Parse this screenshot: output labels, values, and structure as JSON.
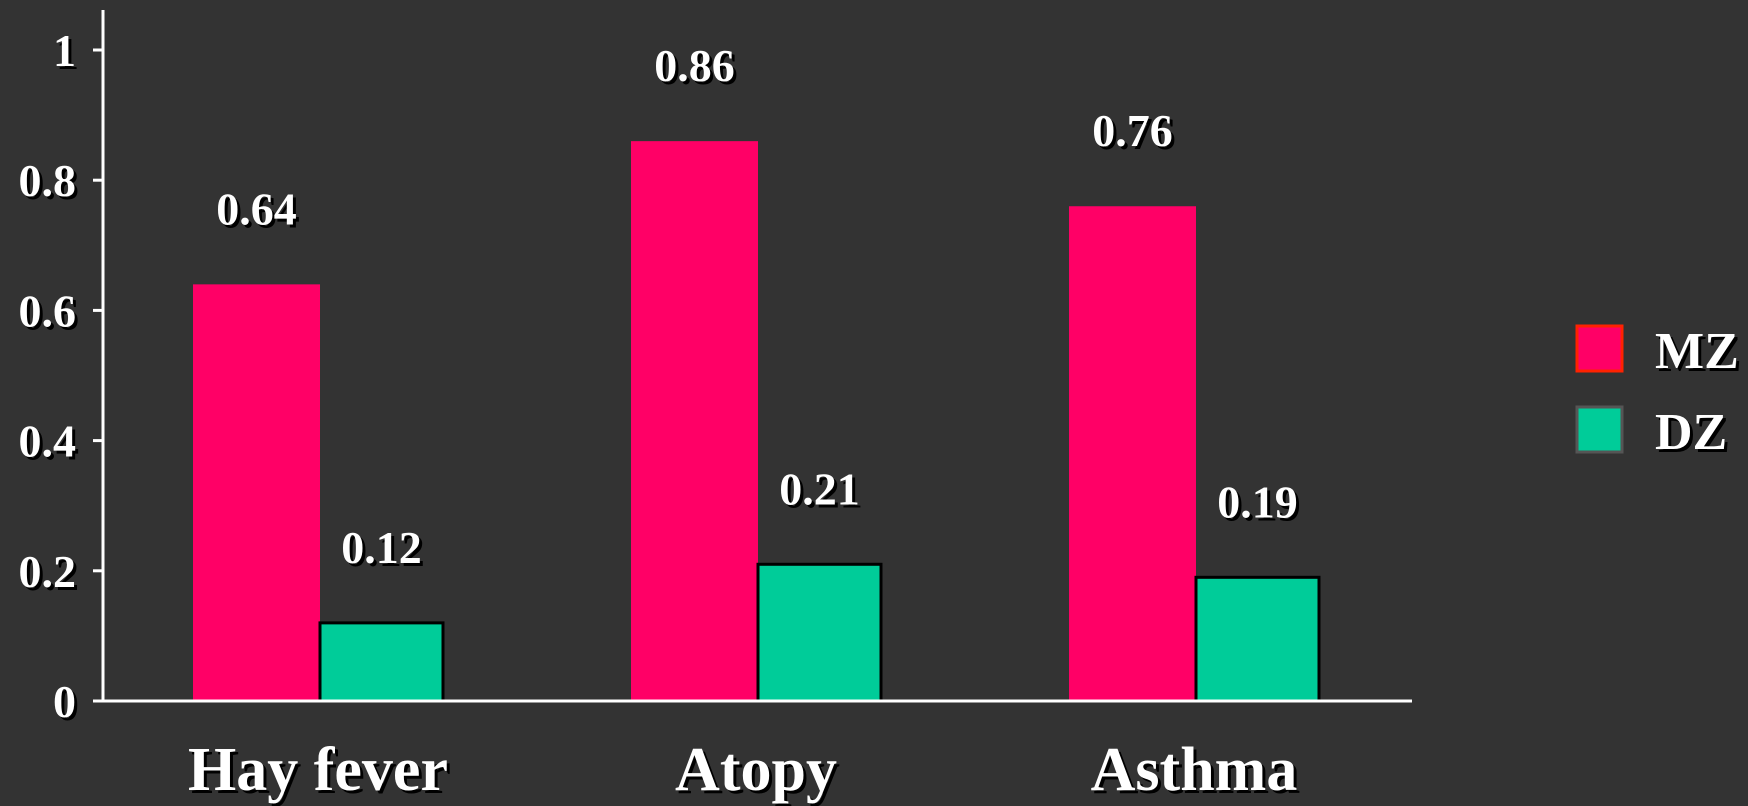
{
  "chart_data": {
    "type": "bar",
    "categories": [
      "Hay fever",
      "Atopy",
      "Asthma"
    ],
    "series": [
      {
        "name": "MZ",
        "values": [
          0.64,
          0.86,
          0.76
        ]
      },
      {
        "name": "DZ",
        "values": [
          0.12,
          0.21,
          0.19
        ]
      }
    ],
    "data_labels": [
      [
        "0.64",
        "0.86",
        "0.76"
      ],
      [
        "0.12",
        "0.21",
        "0.19"
      ]
    ],
    "yticks": [
      "0",
      "0.2",
      "0.4",
      "0.6",
      "0.8",
      "1"
    ],
    "ylim": [
      0,
      1
    ],
    "grid": false,
    "legend": "right",
    "colors": {
      "background": "#333333",
      "MZ": "#FF0066",
      "MZ_border": "#FF2200",
      "DZ": "#00CC99",
      "DZ_border": "#000000",
      "axis": "#ffffff",
      "text": "#ffffff"
    }
  }
}
